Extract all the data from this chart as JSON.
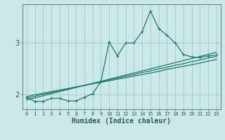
{
  "xlabel": "Humidex (Indice chaleur)",
  "bg_color": "#cce8e8",
  "line_color": "#1a7a6e",
  "grid_color": "#99cccc",
  "x_data": [
    0,
    1,
    2,
    3,
    4,
    5,
    6,
    7,
    8,
    9,
    10,
    11,
    12,
    13,
    14,
    15,
    16,
    17,
    18,
    19,
    20,
    21,
    22,
    23
  ],
  "y_jagged": [
    1.95,
    1.87,
    1.87,
    1.93,
    1.93,
    1.88,
    1.88,
    1.95,
    2.02,
    2.25,
    3.02,
    2.75,
    3.0,
    3.0,
    3.22,
    3.62,
    3.28,
    3.15,
    3.0,
    2.78,
    2.73,
    2.72,
    2.75,
    2.77
  ],
  "y_line1": [
    1.96,
    2.0,
    2.03,
    2.06,
    2.09,
    2.12,
    2.15,
    2.18,
    2.21,
    2.24,
    2.27,
    2.3,
    2.33,
    2.36,
    2.39,
    2.42,
    2.45,
    2.49,
    2.52,
    2.55,
    2.58,
    2.61,
    2.65,
    2.68
  ],
  "y_line2": [
    1.93,
    1.97,
    2.01,
    2.04,
    2.08,
    2.11,
    2.15,
    2.18,
    2.22,
    2.25,
    2.29,
    2.32,
    2.36,
    2.39,
    2.43,
    2.46,
    2.5,
    2.53,
    2.57,
    2.6,
    2.64,
    2.67,
    2.71,
    2.74
  ],
  "y_line3": [
    1.9,
    1.94,
    1.98,
    2.02,
    2.06,
    2.1,
    2.14,
    2.18,
    2.22,
    2.26,
    2.3,
    2.34,
    2.38,
    2.42,
    2.46,
    2.5,
    2.54,
    2.58,
    2.62,
    2.66,
    2.7,
    2.74,
    2.78,
    2.82
  ],
  "ylim": [
    1.72,
    3.75
  ],
  "ytick_pos": [
    2.0,
    3.0
  ],
  "ytick_labels": [
    "2",
    "3"
  ],
  "xticks": [
    0,
    1,
    2,
    3,
    4,
    5,
    6,
    7,
    8,
    9,
    10,
    11,
    12,
    13,
    14,
    15,
    16,
    17,
    18,
    19,
    20,
    21,
    22,
    23
  ],
  "axis_color": "#5a9090",
  "tick_color": "#2a5a5a",
  "xlabel_fontsize": 7.0,
  "ytick_fontsize": 7.5,
  "xtick_fontsize": 5.0
}
